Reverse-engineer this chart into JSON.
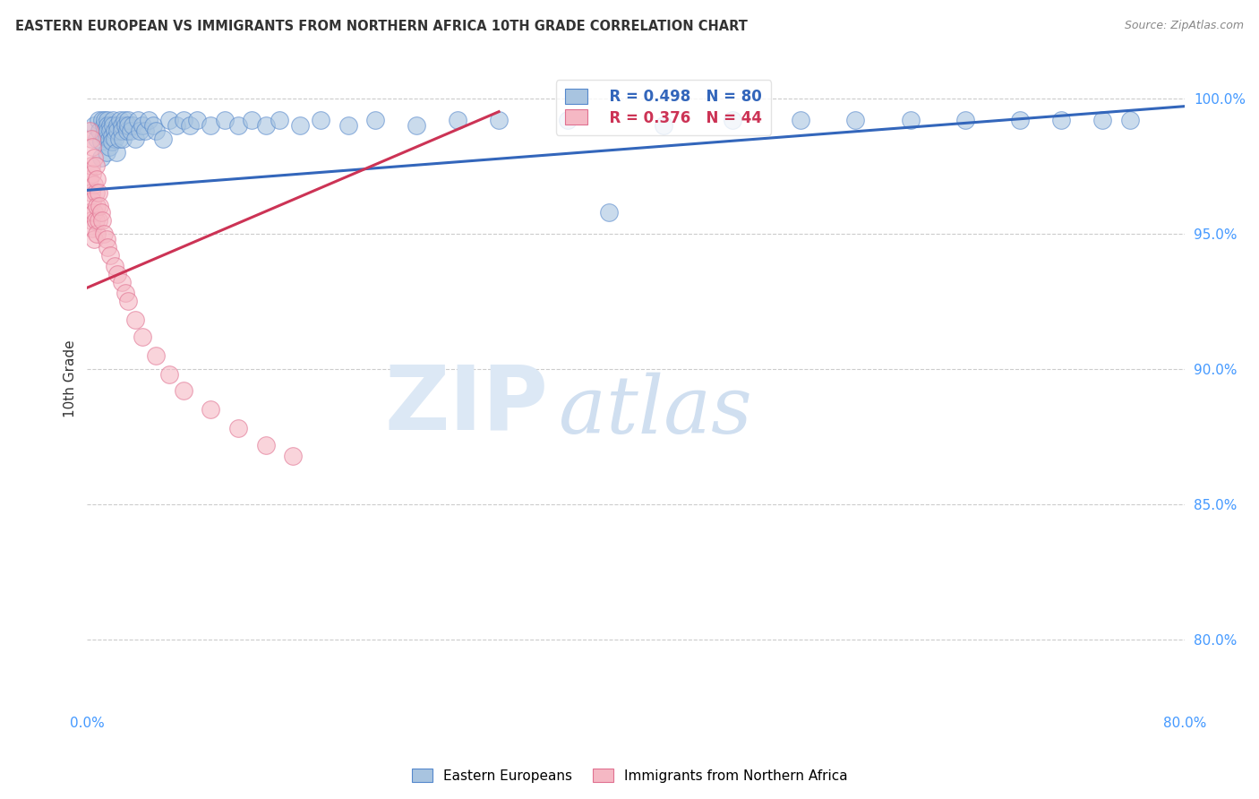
{
  "title": "EASTERN EUROPEAN VS IMMIGRANTS FROM NORTHERN AFRICA 10TH GRADE CORRELATION CHART",
  "source": "Source: ZipAtlas.com",
  "ylabel": "10th Grade",
  "ylabel_ticks": [
    "100.0%",
    "95.0%",
    "90.0%",
    "85.0%",
    "80.0%"
  ],
  "ylabel_values": [
    1.0,
    0.95,
    0.9,
    0.85,
    0.8
  ],
  "xmin": 0.0,
  "xmax": 0.8,
  "ymin": 0.775,
  "ymax": 1.018,
  "blue_R": 0.498,
  "blue_N": 80,
  "pink_R": 0.376,
  "pink_N": 44,
  "blue_color": "#a8c4e0",
  "pink_color": "#f5b8c4",
  "blue_edge_color": "#5588cc",
  "pink_edge_color": "#e07090",
  "blue_line_color": "#3366bb",
  "pink_line_color": "#cc3355",
  "watermark_zip": "ZIP",
  "watermark_atlas": "atlas",
  "watermark_color": "#dce8f5",
  "legend_label_blue": "Eastern Europeans",
  "legend_label_pink": "Immigrants from Northern Africa",
  "blue_line_x0": 0.0,
  "blue_line_y0": 0.966,
  "blue_line_x1": 0.8,
  "blue_line_y1": 0.997,
  "pink_line_x0": 0.0,
  "pink_line_y0": 0.93,
  "pink_line_x1": 0.3,
  "pink_line_y1": 0.995,
  "blue_scatter_x": [
    0.005,
    0.007,
    0.008,
    0.009,
    0.01,
    0.01,
    0.011,
    0.012,
    0.012,
    0.013,
    0.013,
    0.014,
    0.014,
    0.015,
    0.015,
    0.015,
    0.016,
    0.016,
    0.017,
    0.017,
    0.018,
    0.018,
    0.019,
    0.019,
    0.02,
    0.02,
    0.021,
    0.022,
    0.022,
    0.023,
    0.024,
    0.025,
    0.025,
    0.026,
    0.027,
    0.028,
    0.029,
    0.03,
    0.03,
    0.032,
    0.033,
    0.035,
    0.037,
    0.038,
    0.04,
    0.042,
    0.045,
    0.048,
    0.05,
    0.055,
    0.06,
    0.065,
    0.07,
    0.075,
    0.08,
    0.09,
    0.1,
    0.11,
    0.12,
    0.13,
    0.14,
    0.155,
    0.17,
    0.19,
    0.21,
    0.24,
    0.27,
    0.3,
    0.35,
    0.38,
    0.42,
    0.47,
    0.52,
    0.56,
    0.6,
    0.64,
    0.68,
    0.71,
    0.74,
    0.76
  ],
  "blue_scatter_y": [
    0.99,
    0.985,
    0.992,
    0.988,
    0.984,
    0.978,
    0.992,
    0.99,
    0.986,
    0.992,
    0.988,
    0.985,
    0.98,
    0.992,
    0.99,
    0.988,
    0.985,
    0.982,
    0.99,
    0.988,
    0.986,
    0.984,
    0.992,
    0.99,
    0.988,
    0.985,
    0.98,
    0.99,
    0.988,
    0.985,
    0.992,
    0.99,
    0.988,
    0.985,
    0.992,
    0.99,
    0.988,
    0.992,
    0.99,
    0.988,
    0.99,
    0.985,
    0.992,
    0.988,
    0.99,
    0.988,
    0.992,
    0.99,
    0.988,
    0.985,
    0.992,
    0.99,
    0.992,
    0.99,
    0.992,
    0.99,
    0.992,
    0.99,
    0.992,
    0.99,
    0.992,
    0.99,
    0.992,
    0.99,
    0.992,
    0.99,
    0.992,
    0.992,
    0.992,
    0.958,
    0.99,
    0.992,
    0.992,
    0.992,
    0.992,
    0.992,
    0.992,
    0.992,
    0.992,
    0.992
  ],
  "pink_scatter_x": [
    0.002,
    0.002,
    0.002,
    0.003,
    0.003,
    0.003,
    0.003,
    0.004,
    0.004,
    0.004,
    0.004,
    0.005,
    0.005,
    0.005,
    0.005,
    0.006,
    0.006,
    0.006,
    0.007,
    0.007,
    0.007,
    0.008,
    0.008,
    0.009,
    0.01,
    0.011,
    0.012,
    0.014,
    0.015,
    0.017,
    0.02,
    0.022,
    0.025,
    0.028,
    0.03,
    0.035,
    0.04,
    0.05,
    0.06,
    0.07,
    0.09,
    0.11,
    0.13,
    0.15
  ],
  "pink_scatter_y": [
    0.988,
    0.97,
    0.958,
    0.985,
    0.975,
    0.965,
    0.955,
    0.982,
    0.972,
    0.962,
    0.952,
    0.978,
    0.968,
    0.958,
    0.948,
    0.975,
    0.965,
    0.955,
    0.97,
    0.96,
    0.95,
    0.965,
    0.955,
    0.96,
    0.958,
    0.955,
    0.95,
    0.948,
    0.945,
    0.942,
    0.938,
    0.935,
    0.932,
    0.928,
    0.925,
    0.918,
    0.912,
    0.905,
    0.898,
    0.892,
    0.885,
    0.878,
    0.872,
    0.868
  ]
}
